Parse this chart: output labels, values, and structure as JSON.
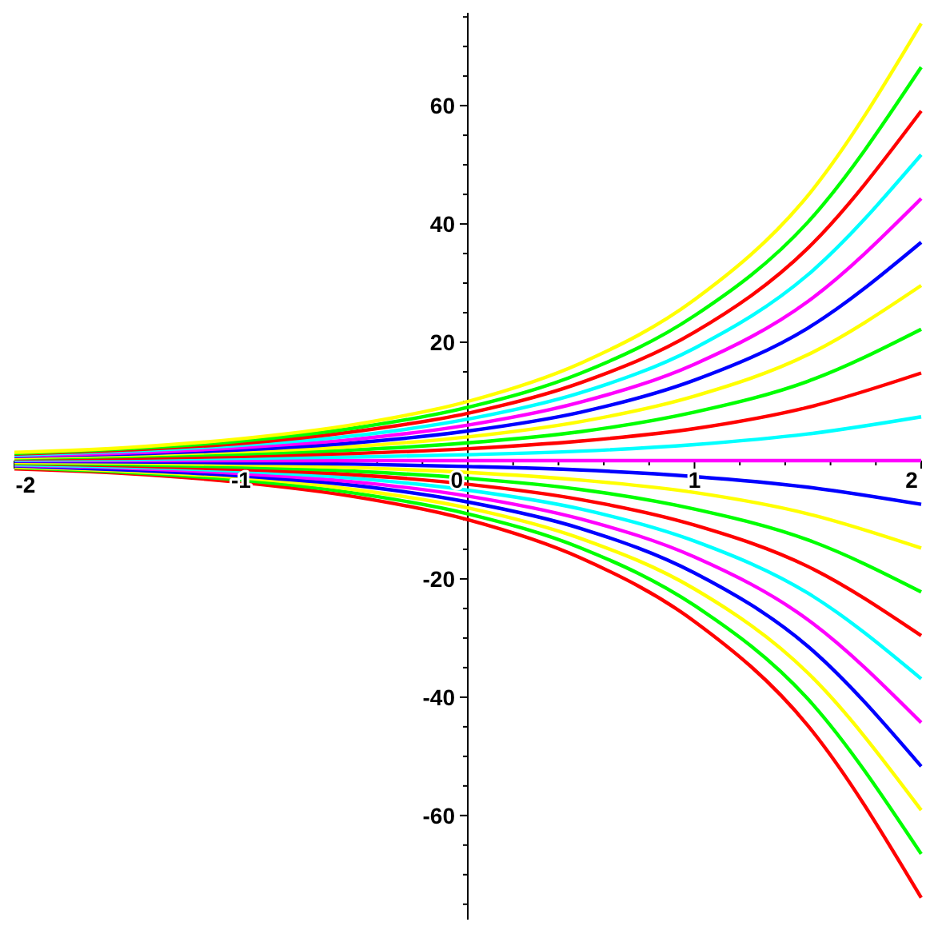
{
  "chart_data": {
    "type": "line",
    "x": [
      -2,
      -1.5,
      -1,
      -0.5,
      0,
      0.5,
      1,
      1.5,
      2
    ],
    "xlim": [
      -2,
      2
    ],
    "ylim": [
      -77.6,
      75.7
    ],
    "xticks": [
      -2,
      {
        "value": -1.8,
        "label": null
      },
      {
        "value": -1.6,
        "label": null
      },
      {
        "value": -1.4,
        "label": null
      },
      {
        "value": -1.2,
        "label": null
      },
      -1,
      {
        "value": -0.8,
        "label": null
      },
      {
        "value": -0.6,
        "label": null
      },
      {
        "value": -0.4,
        "label": null
      },
      {
        "value": -0.2,
        "label": null
      },
      0,
      {
        "value": 0.2,
        "label": null
      },
      {
        "value": 0.4,
        "label": null
      },
      {
        "value": 0.6,
        "label": null
      },
      {
        "value": 0.8,
        "label": null
      },
      1,
      {
        "value": 1.2,
        "label": null
      },
      {
        "value": 1.4,
        "label": null
      },
      {
        "value": 1.6,
        "label": null
      },
      {
        "value": 1.8,
        "label": null
      },
      2
    ],
    "yticks": [
      {
        "value": -75,
        "label": null
      },
      {
        "value": -70,
        "label": null
      },
      {
        "value": -65,
        "label": null
      },
      -60,
      {
        "value": -55,
        "label": null
      },
      {
        "value": -50,
        "label": null
      },
      {
        "value": -45,
        "label": null
      },
      -40,
      {
        "value": -35,
        "label": null
      },
      {
        "value": -30,
        "label": null
      },
      {
        "value": -25,
        "label": null
      },
      -20,
      {
        "value": -15,
        "label": null
      },
      {
        "value": -10,
        "label": null
      },
      {
        "value": -5,
        "label": null
      },
      {
        "value": 5,
        "label": null
      },
      {
        "value": 10,
        "label": null
      },
      {
        "value": 15,
        "label": null
      },
      20,
      {
        "value": 25,
        "label": null
      },
      {
        "value": 30,
        "label": null
      },
      {
        "value": 35,
        "label": null
      },
      40,
      {
        "value": 45,
        "label": null
      },
      {
        "value": 50,
        "label": null
      },
      {
        "value": 55,
        "label": null
      },
      60,
      {
        "value": 65,
        "label": null
      },
      {
        "value": 70,
        "label": null
      },
      {
        "value": 75,
        "label": null
      }
    ],
    "grid": false,
    "marker": "none",
    "line_style": "solid",
    "series": [
      {
        "color": "#ff0000",
        "values": [
          -1.4,
          -2.2,
          -3.7,
          -6.1,
          -10,
          -16.5,
          -27.2,
          -44.8,
          -73.9
        ]
      },
      {
        "color": "#00ff00",
        "values": [
          -1.2,
          -2.0,
          -3.3,
          -5.5,
          -9,
          -14.8,
          -24.5,
          -40.3,
          -66.5
        ]
      },
      {
        "color": "#ffff00",
        "values": [
          -1.1,
          -1.8,
          -2.9,
          -4.9,
          -8,
          -13.2,
          -21.7,
          -35.9,
          -59.1
        ]
      },
      {
        "color": "#0000ff",
        "values": [
          -0.9,
          -1.6,
          -2.6,
          -4.2,
          -7,
          -11.5,
          -19.0,
          -31.4,
          -51.7
        ]
      },
      {
        "color": "#ff00ff",
        "values": [
          -0.8,
          -1.3,
          -2.2,
          -3.6,
          -6,
          -9.9,
          -16.3,
          -26.9,
          -44.3
        ]
      },
      {
        "color": "#00ffff",
        "values": [
          -0.7,
          -1.1,
          -1.8,
          -3.0,
          -5,
          -8.2,
          -13.6,
          -22.4,
          -36.9
        ]
      },
      {
        "color": "#ff0000",
        "values": [
          -0.5,
          -0.9,
          -1.5,
          -2.4,
          -4,
          -6.6,
          -10.9,
          -17.9,
          -29.6
        ]
      },
      {
        "color": "#00ff00",
        "values": [
          -0.4,
          -0.7,
          -1.1,
          -1.8,
          -3,
          -4.9,
          -8.2,
          -13.4,
          -22.2
        ]
      },
      {
        "color": "#ffff00",
        "values": [
          -0.3,
          -0.4,
          -0.7,
          -1.2,
          -2,
          -3.3,
          -5.4,
          -9.0,
          -14.8
        ]
      },
      {
        "color": "#0000ff",
        "values": [
          -0.1,
          -0.2,
          -0.4,
          -0.6,
          -1,
          -1.6,
          -2.7,
          -4.5,
          -7.4
        ]
      },
      {
        "color": "#ff00ff",
        "values": [
          0,
          0,
          0,
          0,
          0,
          0,
          0,
          0,
          0
        ]
      },
      {
        "color": "#00ffff",
        "values": [
          0.1,
          0.2,
          0.4,
          0.6,
          1,
          1.6,
          2.7,
          4.5,
          7.4
        ]
      },
      {
        "color": "#ff0000",
        "values": [
          0.3,
          0.4,
          0.7,
          1.2,
          2,
          3.3,
          5.4,
          9.0,
          14.8
        ]
      },
      {
        "color": "#00ff00",
        "values": [
          0.4,
          0.7,
          1.1,
          1.8,
          3,
          4.9,
          8.2,
          13.4,
          22.2
        ]
      },
      {
        "color": "#ffff00",
        "values": [
          0.5,
          0.9,
          1.5,
          2.4,
          4,
          6.6,
          10.9,
          17.9,
          29.6
        ]
      },
      {
        "color": "#0000ff",
        "values": [
          0.7,
          1.1,
          1.8,
          3.0,
          5,
          8.2,
          13.6,
          22.4,
          36.9
        ]
      },
      {
        "color": "#ff00ff",
        "values": [
          0.8,
          1.3,
          2.2,
          3.6,
          6,
          9.9,
          16.3,
          26.9,
          44.3
        ]
      },
      {
        "color": "#00ffff",
        "values": [
          0.9,
          1.6,
          2.6,
          4.2,
          7,
          11.5,
          19.0,
          31.4,
          51.7
        ]
      },
      {
        "color": "#ff0000",
        "values": [
          1.1,
          1.8,
          2.9,
          4.9,
          8,
          13.2,
          21.7,
          35.9,
          59.1
        ]
      },
      {
        "color": "#00ff00",
        "values": [
          1.2,
          2.0,
          3.3,
          5.5,
          9,
          14.8,
          24.5,
          40.3,
          66.5
        ]
      },
      {
        "color": "#ffff00",
        "values": [
          1.4,
          2.2,
          3.7,
          6.1,
          10,
          16.5,
          27.2,
          44.8,
          73.9
        ]
      }
    ]
  }
}
